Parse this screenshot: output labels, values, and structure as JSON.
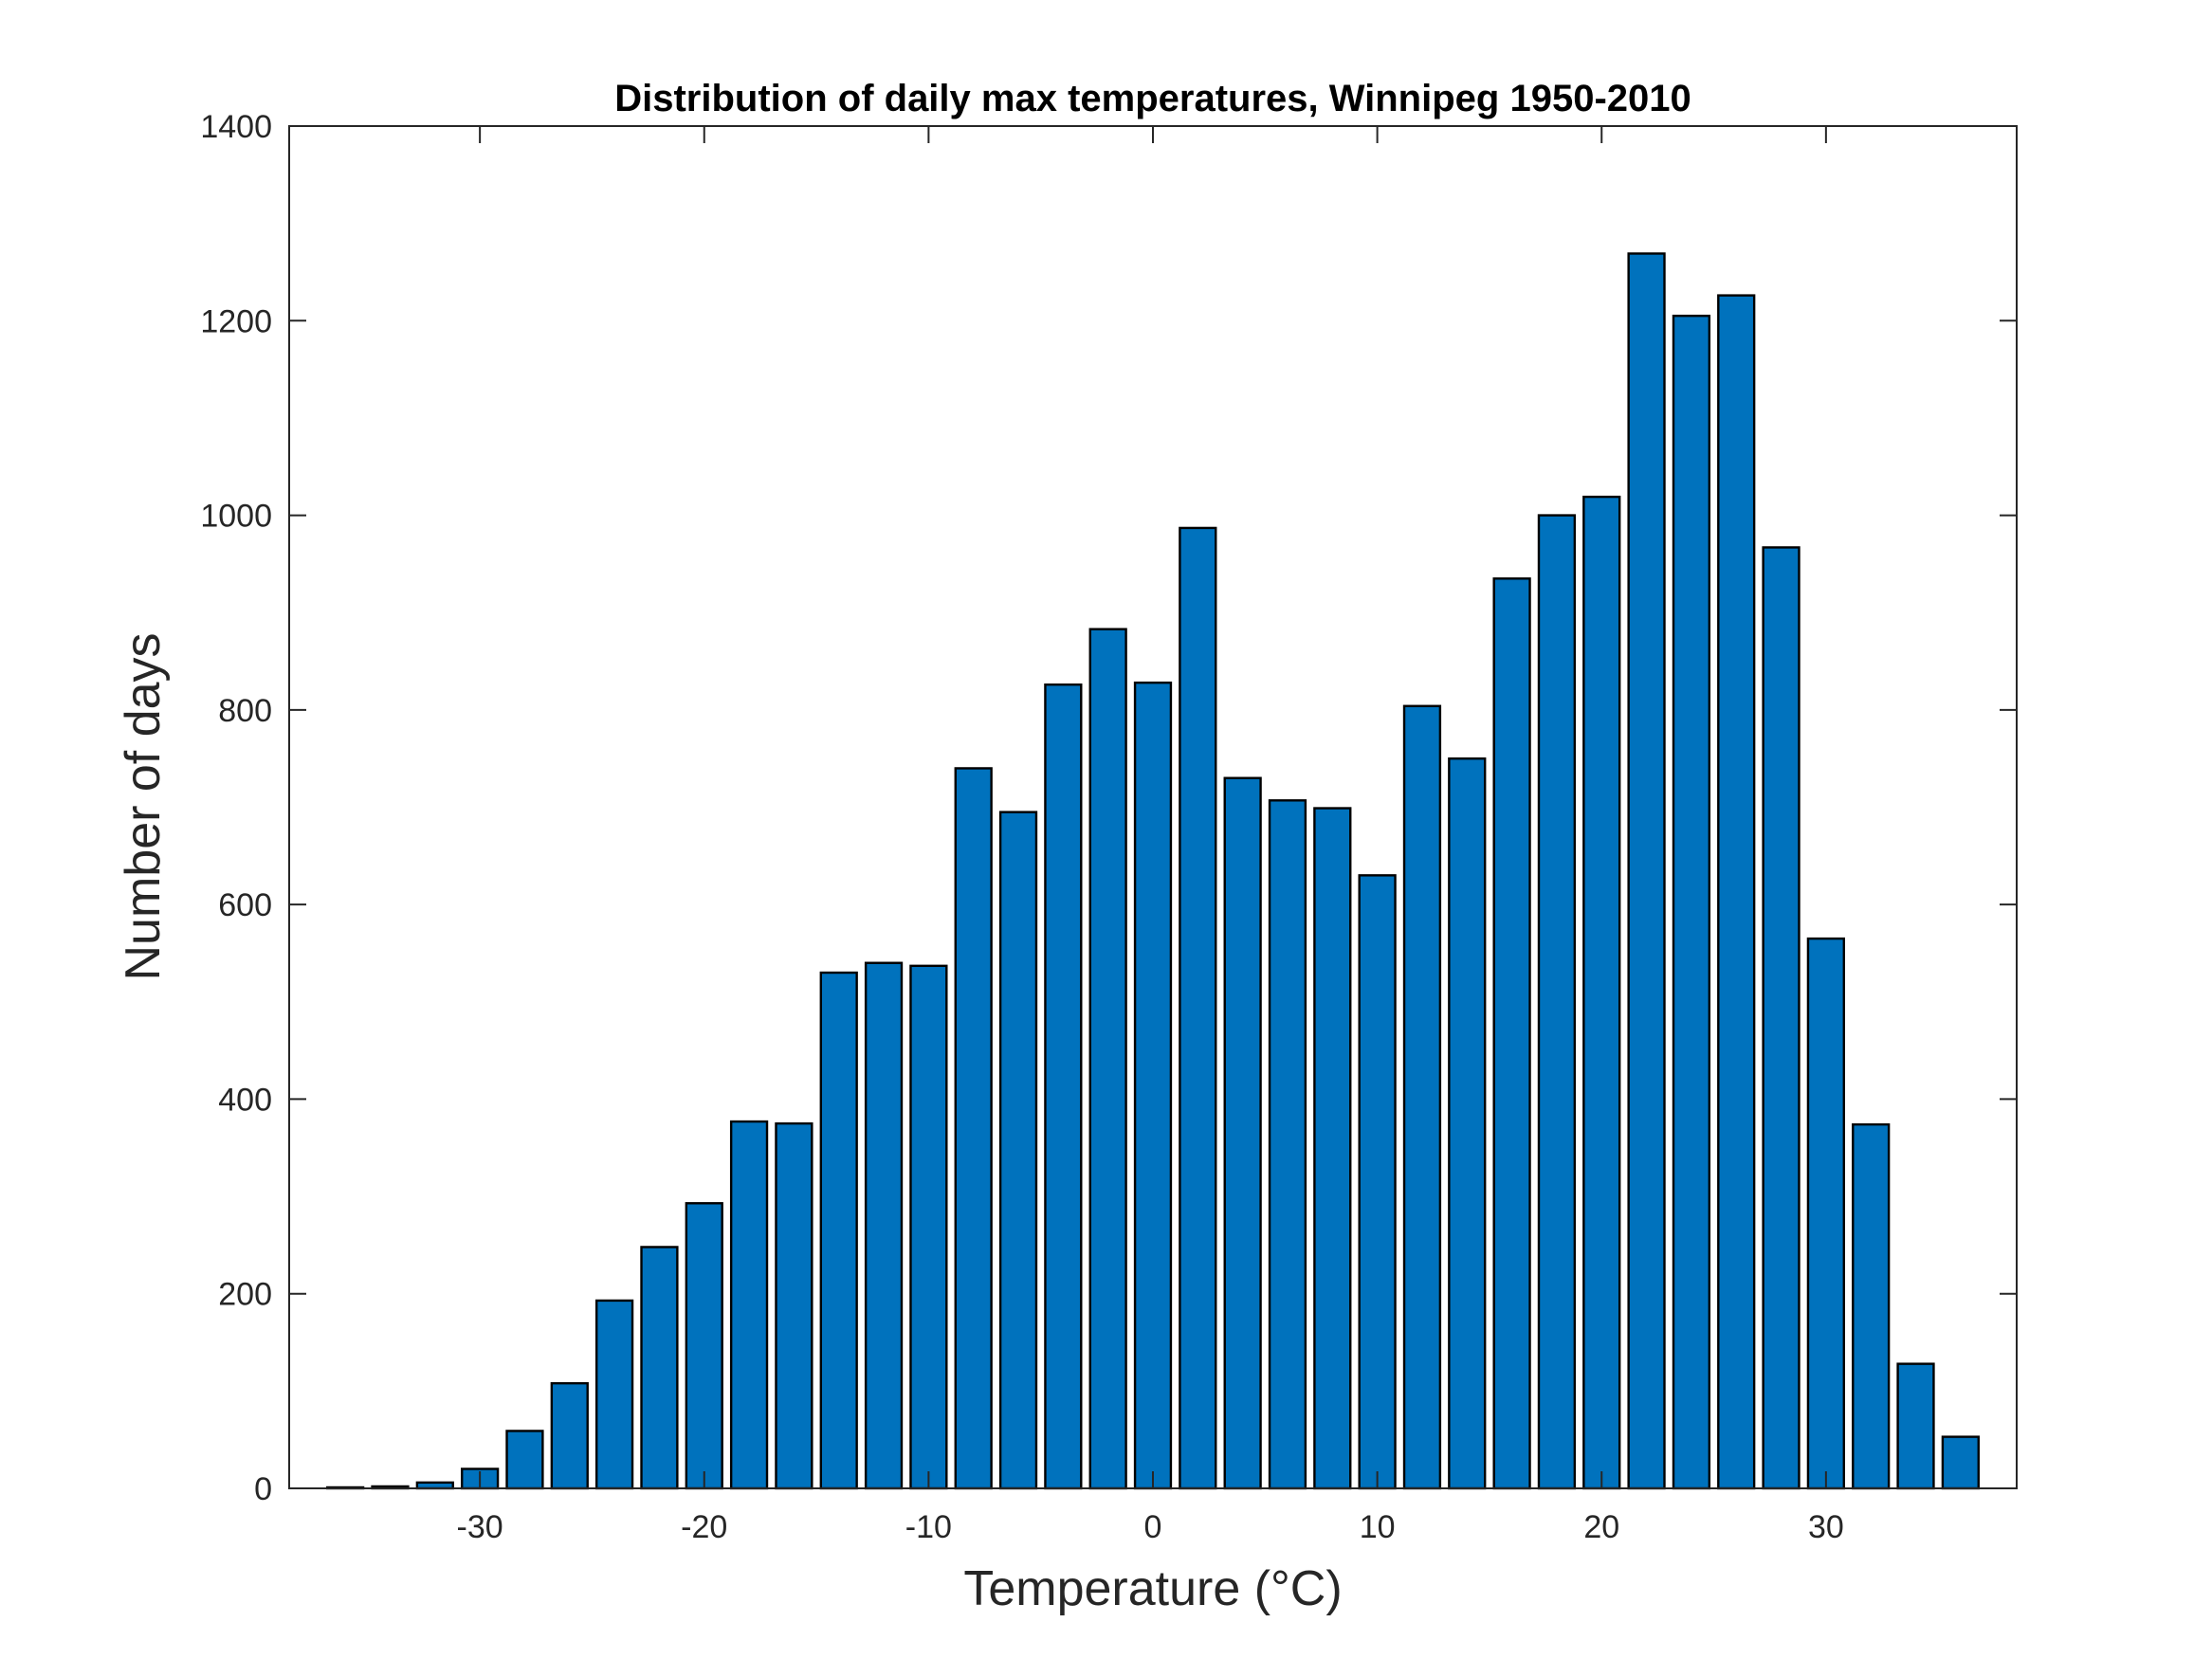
{
  "chart_data": {
    "type": "bar",
    "title": "Distribution of daily max temperatures, Winnipeg 1950-2010",
    "xlabel": "Temperature (°C)",
    "ylabel": "Number of days",
    "xlim": [
      -38.5,
      38.5
    ],
    "ylim": [
      0,
      1400
    ],
    "bin_width": 2,
    "bar_width_fraction": 0.8,
    "x": [
      -36,
      -34,
      -32,
      -30,
      -28,
      -26,
      -24,
      -22,
      -20,
      -18,
      -16,
      -14,
      -12,
      -10,
      -8,
      -6,
      -4,
      -2,
      0,
      2,
      4,
      6,
      8,
      10,
      12,
      14,
      16,
      18,
      20,
      22,
      24,
      26,
      28,
      30,
      32,
      34,
      36
    ],
    "values": [
      1,
      2,
      6,
      20,
      59,
      108,
      193,
      248,
      293,
      377,
      375,
      530,
      540,
      537,
      740,
      695,
      826,
      883,
      828,
      987,
      730,
      707,
      699,
      630,
      804,
      750,
      935,
      1000,
      1019,
      1269,
      1205,
      1226,
      967,
      565,
      374,
      128,
      53
    ],
    "xticks": [
      -30,
      -20,
      -10,
      0,
      10,
      20,
      30
    ],
    "xtick_labels": [
      "-30",
      "-20",
      "-10",
      "0",
      "10",
      "20",
      "30"
    ],
    "yticks": [
      0,
      200,
      400,
      600,
      800,
      1000,
      1200,
      1400
    ],
    "ytick_labels": [
      "0",
      "200",
      "400",
      "600",
      "800",
      "1000",
      "1200",
      "1400"
    ],
    "grid": false,
    "colors": {
      "bar_fill": "#0072BD",
      "bar_edge": "#000000",
      "axes": "#262626"
    }
  }
}
